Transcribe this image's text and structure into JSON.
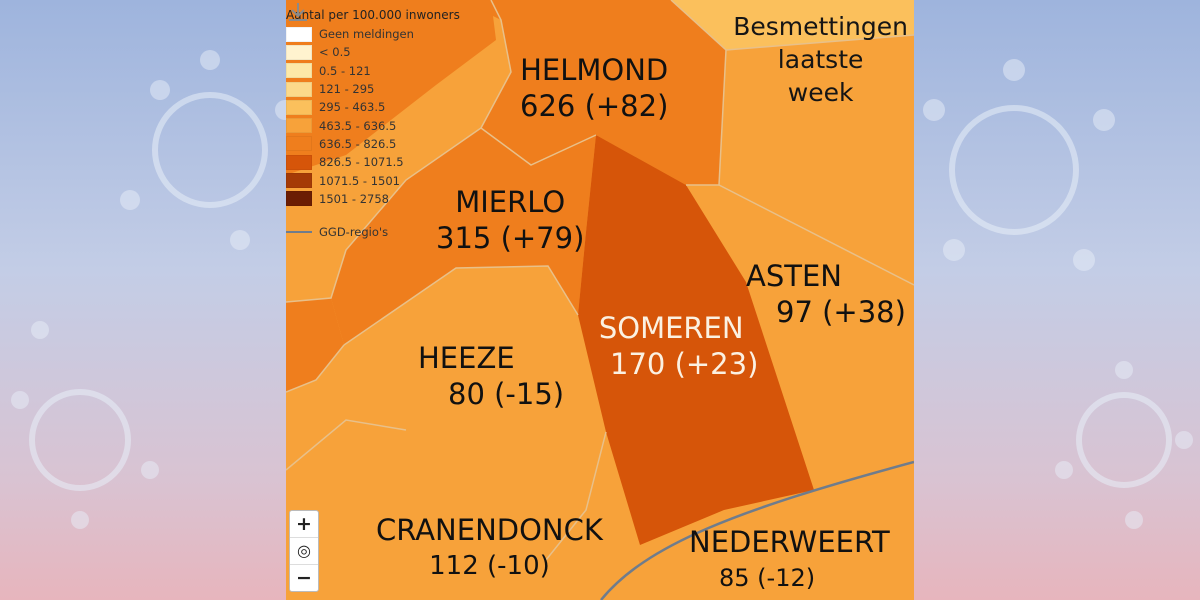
{
  "legend": {
    "title": "Aantal per 100.000 inwoners",
    "items": [
      {
        "label": "Geen meldingen",
        "color": "#ffffff"
      },
      {
        "label": "< 0.5",
        "color": "#fff3cf"
      },
      {
        "label": "0.5 - 121",
        "color": "#fde9a8"
      },
      {
        "label": "121 - 295",
        "color": "#fcd98a"
      },
      {
        "label": "295 - 463.5",
        "color": "#fbc05c"
      },
      {
        "label": "463.5 - 636.5",
        "color": "#f7a23a"
      },
      {
        "label": "636.5 - 826.5",
        "color": "#ef7e1d"
      },
      {
        "label": "826.5 - 1071.5",
        "color": "#d65509"
      },
      {
        "label": "1071.5 - 1501",
        "color": "#a43a06"
      },
      {
        "label": "1501 - 2758",
        "color": "#6b1d03"
      }
    ],
    "boundary_label": "GGD-regio's",
    "boundary_color": "#6f7c8c"
  },
  "title": {
    "line1": "Besmettingen",
    "line2": "laatste",
    "line3": "week"
  },
  "regions": [
    {
      "id": "helmond",
      "name": "HELMOND",
      "value": "626 (+82)",
      "color": "#ef7e1d"
    },
    {
      "id": "mierlo",
      "name": "MIERLO",
      "value": "315 (+79)",
      "color": "#ef7e1d"
    },
    {
      "id": "asten",
      "name": "ASTEN",
      "value": "97 (+38)",
      "color": "#f7a23a"
    },
    {
      "id": "someren",
      "name": "SOMEREN",
      "value": "170 (+23)",
      "color": "#d65509"
    },
    {
      "id": "heeze",
      "name": "HEEZE",
      "value": "80 (-15)",
      "color": "#f7a23a"
    },
    {
      "id": "cranendonck",
      "name": "CRANENDONCK",
      "value": "112 (-10)",
      "color": "#f7a23a"
    },
    {
      "id": "nederweert",
      "name": "NEDERWEERT",
      "value": "85 (-12)",
      "color": "#f7a23a"
    }
  ],
  "controls": {
    "zoom_in": "+",
    "locate": "◎",
    "zoom_out": "−"
  },
  "icons": {
    "download": "download-icon"
  }
}
